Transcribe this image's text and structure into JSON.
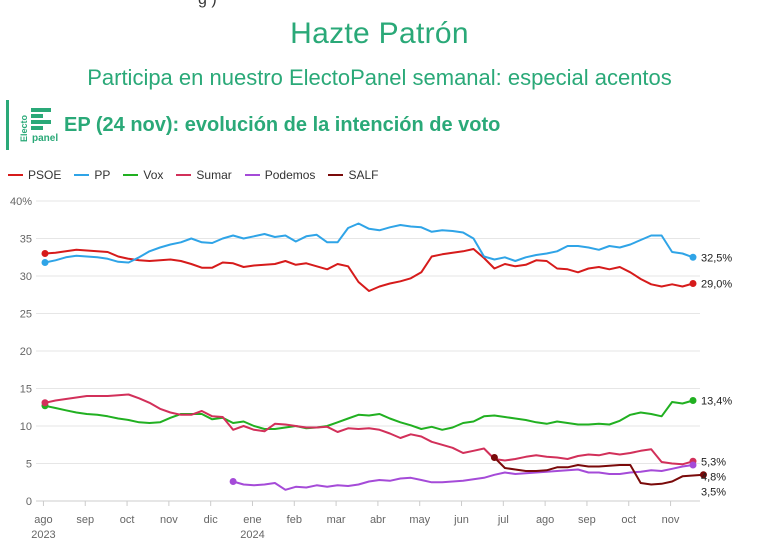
{
  "header": {
    "top_fragment": "g )",
    "title": "Hazte Patrón",
    "subtitle": "Participa en nuestro ElectoPanel semanal: especial acentos",
    "chart_title": "EP (24 nov): evolución de la intención de voto",
    "logo_text_vertical": "Electo",
    "logo_text_horizontal": "panel"
  },
  "colors": {
    "brand": "#2aa978",
    "PSOE": "#d61b1b",
    "PP": "#2fa4e7",
    "Vox": "#21b021",
    "Sumar": "#d2305a",
    "Podemos": "#a54bd8",
    "SALF": "#7a0a0a",
    "grid": "#e6e6e6"
  },
  "chart_data": {
    "type": "line",
    "title": "EP (24 nov): evolución de la intención de voto",
    "xlabel": "",
    "ylabel": "",
    "ylim": [
      0,
      40
    ],
    "xlim": [
      0,
      62
    ],
    "yticks": [
      "0",
      "5",
      "10",
      "15",
      "20",
      "25",
      "30",
      "35",
      "40%"
    ],
    "xticks": [
      {
        "x": 1,
        "label": "ago",
        "sub": "2023"
      },
      {
        "x": 5,
        "label": "sep",
        "sub": ""
      },
      {
        "x": 9,
        "label": "oct",
        "sub": ""
      },
      {
        "x": 13,
        "label": "nov",
        "sub": ""
      },
      {
        "x": 17,
        "label": "dic",
        "sub": ""
      },
      {
        "x": 21,
        "label": "ene",
        "sub": "2024"
      },
      {
        "x": 25,
        "label": "feb",
        "sub": ""
      },
      {
        "x": 29,
        "label": "mar",
        "sub": ""
      },
      {
        "x": 33,
        "label": "abr",
        "sub": ""
      },
      {
        "x": 37,
        "label": "may",
        "sub": ""
      },
      {
        "x": 41,
        "label": "jun",
        "sub": ""
      },
      {
        "x": 45,
        "label": "jul",
        "sub": ""
      },
      {
        "x": 49,
        "label": "ago",
        "sub": ""
      },
      {
        "x": 53,
        "label": "sep",
        "sub": ""
      },
      {
        "x": 57,
        "label": "oct",
        "sub": ""
      },
      {
        "x": 61,
        "label": "nov",
        "sub": ""
      }
    ],
    "legend_position": "top-left",
    "grid": true,
    "series": [
      {
        "name": "PSOE",
        "end_label": "29,0%",
        "x_start": 0,
        "values": [
          33.0,
          33.1,
          33.3,
          33.5,
          33.4,
          33.3,
          33.2,
          32.6,
          32.3,
          32.1,
          32.0,
          32.1,
          32.2,
          32.0,
          31.6,
          31.1,
          31.1,
          31.8,
          31.7,
          31.2,
          31.4,
          31.5,
          31.6,
          32.0,
          31.5,
          31.7,
          31.3,
          30.9,
          31.6,
          31.3,
          29.2,
          28.0,
          28.6,
          29.0,
          29.3,
          29.7,
          30.5,
          32.6,
          32.9,
          33.1,
          33.3,
          33.6,
          32.4,
          31.0,
          31.6,
          31.3,
          31.5,
          32.1,
          32.0,
          31.0,
          30.9,
          30.5,
          31.0,
          31.2,
          30.9,
          31.2,
          30.5,
          29.6,
          28.9,
          28.6,
          28.9,
          28.6,
          29.0
        ]
      },
      {
        "name": "PP",
        "end_label": "32,5%",
        "x_start": 0,
        "values": [
          31.8,
          32.1,
          32.5,
          32.7,
          32.6,
          32.5,
          32.3,
          31.9,
          31.8,
          32.5,
          33.3,
          33.8,
          34.2,
          34.5,
          35.0,
          34.5,
          34.4,
          35.0,
          35.4,
          35.0,
          35.3,
          35.6,
          35.2,
          35.4,
          34.6,
          35.3,
          35.5,
          34.5,
          34.5,
          36.4,
          37.0,
          36.3,
          36.1,
          36.5,
          36.8,
          36.6,
          36.5,
          35.9,
          36.1,
          36.0,
          35.8,
          35.0,
          32.6,
          32.2,
          32.5,
          32.0,
          32.5,
          32.8,
          33.0,
          33.3,
          34.0,
          34.0,
          33.8,
          33.5,
          34.0,
          33.8,
          34.2,
          34.8,
          35.4,
          35.4,
          33.2,
          33.0,
          32.5
        ]
      },
      {
        "name": "Vox",
        "end_label": "13,4%",
        "x_start": 0,
        "values": [
          12.7,
          12.4,
          12.1,
          11.8,
          11.6,
          11.5,
          11.3,
          11.0,
          10.8,
          10.5,
          10.4,
          10.5,
          11.1,
          11.6,
          11.6,
          11.6,
          10.9,
          11.1,
          10.4,
          10.6,
          10.0,
          9.6,
          9.6,
          9.8,
          10.0,
          9.7,
          9.8,
          10.0,
          10.5,
          11.0,
          11.5,
          11.4,
          11.6,
          11.0,
          10.5,
          10.1,
          9.6,
          9.9,
          9.5,
          9.8,
          10.4,
          10.6,
          11.3,
          11.4,
          11.2,
          11.0,
          10.8,
          10.5,
          10.3,
          10.6,
          10.4,
          10.2,
          10.2,
          10.3,
          10.2,
          10.7,
          11.5,
          11.8,
          11.6,
          11.3,
          13.2,
          13.0,
          13.4
        ]
      },
      {
        "name": "Sumar",
        "end_label": "5,3%",
        "x_start": 0,
        "values": [
          13.1,
          13.4,
          13.6,
          13.8,
          14.0,
          14.0,
          14.0,
          14.1,
          14.2,
          13.7,
          13.1,
          12.3,
          11.8,
          11.5,
          11.5,
          12.0,
          11.3,
          11.2,
          9.5,
          10.0,
          9.5,
          9.3,
          10.3,
          10.2,
          10.0,
          9.8,
          9.8,
          9.9,
          9.2,
          9.7,
          9.6,
          9.7,
          9.5,
          9.0,
          8.4,
          8.9,
          8.6,
          7.9,
          7.5,
          7.1,
          6.4,
          6.7,
          7.0,
          5.6,
          5.4,
          5.6,
          5.9,
          6.1,
          5.9,
          5.8,
          5.6,
          6.0,
          6.2,
          6.1,
          6.4,
          6.2,
          6.4,
          6.7,
          6.9,
          5.2,
          5.0,
          4.9,
          5.3
        ]
      },
      {
        "name": "Podemos",
        "end_label": "4,8%",
        "x_start": 18,
        "values": [
          2.6,
          2.2,
          2.1,
          2.2,
          2.4,
          1.5,
          1.9,
          1.8,
          2.1,
          1.9,
          2.1,
          2.0,
          2.2,
          2.6,
          2.8,
          2.7,
          3.0,
          3.1,
          2.8,
          2.5,
          2.5,
          2.6,
          2.7,
          2.9,
          3.1,
          3.5,
          3.8,
          3.6,
          3.7,
          3.8,
          3.9,
          4.0,
          4.1,
          4.2,
          3.8,
          3.8,
          3.6,
          3.6,
          3.8,
          3.9,
          4.1,
          4.0,
          4.3,
          4.6,
          4.8
        ]
      },
      {
        "name": "SALF",
        "end_label": "3,5%",
        "x_start": 43,
        "values": [
          5.8,
          4.4,
          4.2,
          4.0,
          4.0,
          4.1,
          4.5,
          4.5,
          4.8,
          4.6,
          4.6,
          4.7,
          4.8,
          4.8,
          2.4,
          2.2,
          2.3,
          2.6,
          3.3,
          3.4,
          3.5
        ]
      }
    ]
  }
}
